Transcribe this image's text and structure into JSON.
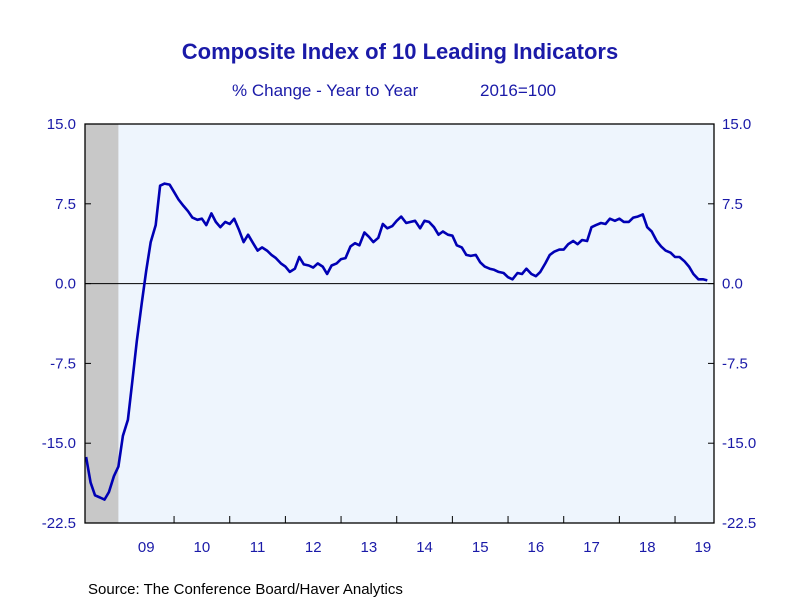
{
  "chart_data": {
    "type": "line",
    "title": "Composite Index of 10 Leading Indicators",
    "subtitle": "% Change - Year to Year",
    "subtitle_note": "2016=100",
    "source": "Source:  The Conference Board/Haver Analytics",
    "ylim": [
      -22.5,
      15.0
    ],
    "xlim": [
      2008.4,
      2019.7
    ],
    "y_ticks": [
      "15.0",
      "7.5",
      "0.0",
      "-7.5",
      "-15.0",
      "-22.5"
    ],
    "y_tick_values": [
      15.0,
      7.5,
      0.0,
      -7.5,
      -15.0,
      -22.5
    ],
    "x_tick_labels": [
      "09",
      "10",
      "11",
      "12",
      "13",
      "14",
      "15",
      "16",
      "17",
      "18",
      "19"
    ],
    "x_label_positions": [
      2009.5,
      2010.5,
      2011.5,
      2012.5,
      2013.5,
      2014.5,
      2015.5,
      2016.5,
      2017.5,
      2018.5,
      2019.5
    ],
    "x_year_boundaries": [
      2010,
      2011,
      2012,
      2013,
      2014,
      2015,
      2016,
      2017,
      2018,
      2019
    ],
    "recession": {
      "start": 2008.4,
      "end": 2009.0
    },
    "colors": {
      "line": "#0000b4",
      "text": "#1a1aa8",
      "plot_bg": "#eef5fd",
      "recession": "#c8c8c8",
      "frame": "#000000"
    },
    "grid": false,
    "series": [
      {
        "x": [
          2008.42,
          2008.5,
          2008.58,
          2008.67,
          2008.75,
          2008.83,
          2008.92,
          2009.0,
          2009.08,
          2009.17,
          2009.25,
          2009.33,
          2009.42,
          2009.5,
          2009.58,
          2009.67,
          2009.75,
          2009.83,
          2009.92,
          2010.0,
          2010.08,
          2010.17,
          2010.25,
          2010.33,
          2010.42,
          2010.5,
          2010.58,
          2010.67,
          2010.75,
          2010.83,
          2010.92,
          2011.0,
          2011.08,
          2011.17,
          2011.25,
          2011.33,
          2011.42,
          2011.5,
          2011.58,
          2011.67,
          2011.75,
          2011.83,
          2011.92,
          2012.0,
          2012.08,
          2012.17,
          2012.25,
          2012.33,
          2012.42,
          2012.5,
          2012.58,
          2012.67,
          2012.75,
          2012.83,
          2012.92,
          2013.0,
          2013.08,
          2013.17,
          2013.25,
          2013.33,
          2013.42,
          2013.5,
          2013.58,
          2013.67,
          2013.75,
          2013.83,
          2013.92,
          2014.0,
          2014.08,
          2014.17,
          2014.25,
          2014.33,
          2014.42,
          2014.5,
          2014.58,
          2014.67,
          2014.75,
          2014.83,
          2014.92,
          2015.0,
          2015.08,
          2015.17,
          2015.25,
          2015.33,
          2015.42,
          2015.5,
          2015.58,
          2015.67,
          2015.75,
          2015.83,
          2015.92,
          2016.0,
          2016.08,
          2016.17,
          2016.25,
          2016.33,
          2016.42,
          2016.5,
          2016.58,
          2016.67,
          2016.75,
          2016.83,
          2016.92,
          2017.0,
          2017.08,
          2017.17,
          2017.25,
          2017.33,
          2017.42,
          2017.5,
          2017.58,
          2017.67,
          2017.75,
          2017.83,
          2017.92,
          2018.0,
          2018.08,
          2018.17,
          2018.25,
          2018.33,
          2018.42,
          2018.5,
          2018.58,
          2018.67,
          2018.75,
          2018.83,
          2018.92,
          2019.0,
          2019.08,
          2019.17,
          2019.25,
          2019.33,
          2019.42,
          2019.5,
          2019.58
        ],
        "values": [
          -16.3,
          -18.7,
          -19.9,
          -20.1,
          -20.3,
          -19.6,
          -18.1,
          -17.2,
          -14.3,
          -12.8,
          -9.2,
          -5.4,
          -1.8,
          1.2,
          3.9,
          5.5,
          9.2,
          9.4,
          9.3,
          8.6,
          7.9,
          7.3,
          6.8,
          6.2,
          6.0,
          6.1,
          5.5,
          6.6,
          5.8,
          5.3,
          5.8,
          5.6,
          6.1,
          5.0,
          3.9,
          4.6,
          3.8,
          3.1,
          3.4,
          3.1,
          2.7,
          2.4,
          1.9,
          1.6,
          1.1,
          1.4,
          2.5,
          1.8,
          1.7,
          1.5,
          1.9,
          1.6,
          0.9,
          1.7,
          1.9,
          2.3,
          2.4,
          3.5,
          3.8,
          3.6,
          4.8,
          4.4,
          3.9,
          4.3,
          5.6,
          5.2,
          5.4,
          5.9,
          6.3,
          5.7,
          5.8,
          5.9,
          5.2,
          5.9,
          5.8,
          5.3,
          4.6,
          4.9,
          4.6,
          4.5,
          3.6,
          3.4,
          2.7,
          2.6,
          2.7,
          2.0,
          1.6,
          1.4,
          1.3,
          1.1,
          1.0,
          0.6,
          0.4,
          1.0,
          0.9,
          1.4,
          0.9,
          0.7,
          1.1,
          1.9,
          2.7,
          3.0,
          3.2,
          3.2,
          3.7,
          4.0,
          3.7,
          4.1,
          4.0,
          5.3,
          5.5,
          5.7,
          5.6,
          6.1,
          5.9,
          6.1,
          5.8,
          5.8,
          6.2,
          6.3,
          6.5,
          5.3,
          4.9,
          4.0,
          3.5,
          3.1,
          2.9,
          2.5,
          2.5,
          2.1,
          1.6,
          0.9,
          0.4,
          0.4,
          0.3
        ]
      }
    ]
  }
}
